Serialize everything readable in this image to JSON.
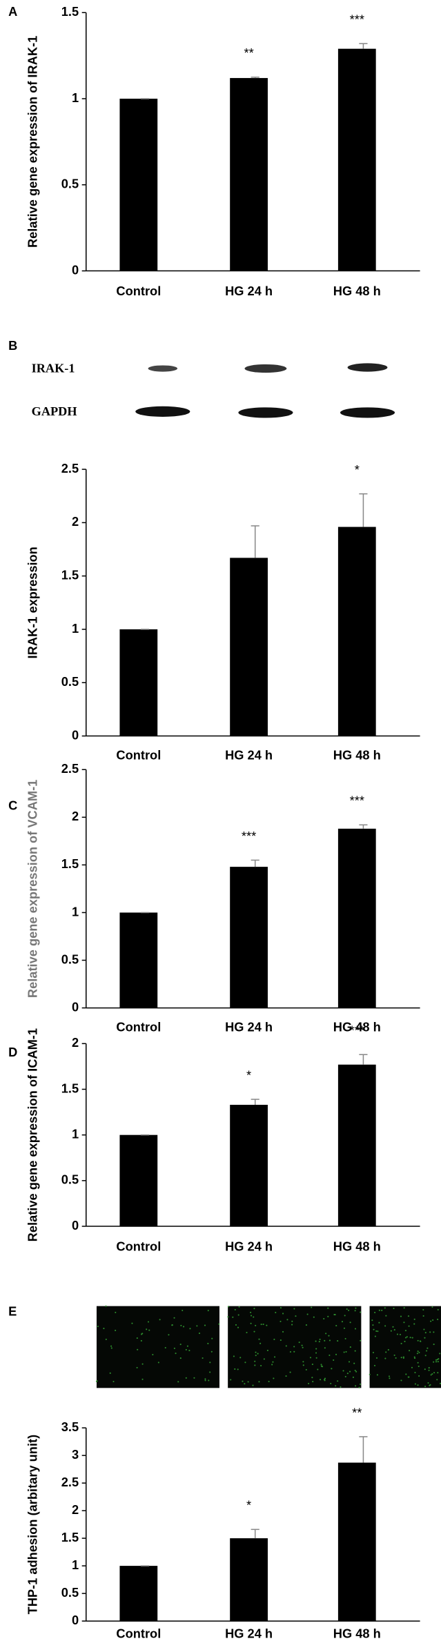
{
  "panel_labels": [
    "A",
    "B",
    "C",
    "D",
    "E"
  ],
  "blot": {
    "rows": [
      "IRAK-1",
      "GAPDH"
    ]
  },
  "chart_data": [
    {
      "type": "bar",
      "ylabel": "Relative gene expression of IRAK-1",
      "categories": [
        "Control",
        "HG 24 h",
        "HG 48 h"
      ],
      "values": [
        1,
        1.12,
        1.29
      ],
      "errors": [
        0,
        0.005,
        0.03
      ],
      "annotations": [
        null,
        "**",
        "***"
      ],
      "color": "#000000",
      "ylim": [
        0,
        1.5
      ],
      "yticks": [
        0,
        0.5,
        1,
        1.5
      ]
    },
    {
      "type": "bar",
      "ylabel": "IRAK-1 expression",
      "categories": [
        "Control",
        "HG 24 h",
        "HG 48 h"
      ],
      "values": [
        1,
        1.67,
        1.96
      ],
      "errors": [
        0,
        0.3,
        0.31
      ],
      "annotations": [
        null,
        null,
        "*"
      ],
      "color": "#000000",
      "ylim": [
        0,
        2.5
      ],
      "yticks": [
        0,
        0.5,
        1,
        1.5,
        2,
        2.5
      ]
    },
    {
      "type": "bar",
      "ylabel": "Relative gene expression of VCAM-1",
      "categories": [
        "Control",
        "HG 24 h",
        "HG 48 h"
      ],
      "values": [
        1,
        1.48,
        1.88
      ],
      "errors": [
        0,
        0.07,
        0.04
      ],
      "annotations": [
        null,
        "***",
        "***"
      ],
      "color": "#000000",
      "ylim": [
        0,
        2.5
      ],
      "yticks": [
        0,
        0.5,
        1,
        1.5,
        2,
        2.5
      ]
    },
    {
      "type": "bar",
      "ylabel": "Relative gene expression of ICAM-1",
      "categories": [
        "Control",
        "HG 24 h",
        "HG 48 h"
      ],
      "values": [
        1,
        1.33,
        1.77
      ],
      "errors": [
        0,
        0.06,
        0.11
      ],
      "annotations": [
        null,
        "*",
        "***"
      ],
      "color": "#000000",
      "ylim": [
        0,
        2
      ],
      "yticks": [
        0,
        0.5,
        1,
        1.5,
        2
      ]
    },
    {
      "type": "bar",
      "ylabel": "THP-1 adhesion (arbitary unit)",
      "categories": [
        "Control",
        "HG 24 h",
        "HG 48 h"
      ],
      "values": [
        1,
        1.5,
        2.87
      ],
      "errors": [
        0,
        0.16,
        0.47
      ],
      "annotations": [
        null,
        "*",
        "**"
      ],
      "color": "#000000",
      "ylim": [
        0,
        3.5
      ],
      "yticks": [
        0,
        0.5,
        1,
        1.5,
        2,
        2.5,
        3,
        3.5
      ]
    }
  ]
}
